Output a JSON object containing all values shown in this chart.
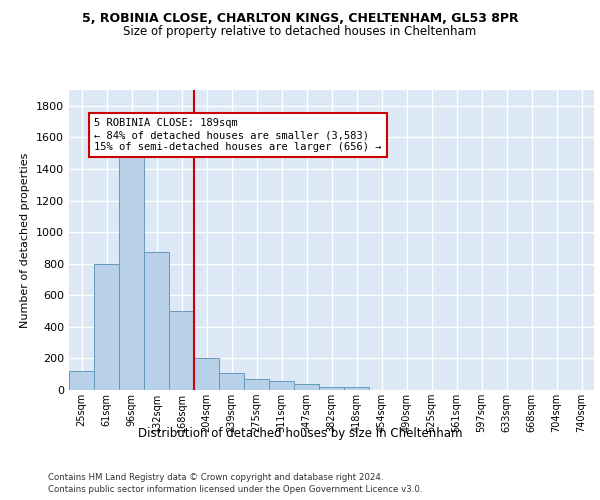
{
  "title_line1": "5, ROBINIA CLOSE, CHARLTON KINGS, CHELTENHAM, GL53 8PR",
  "title_line2": "Size of property relative to detached houses in Cheltenham",
  "xlabel": "Distribution of detached houses by size in Cheltenham",
  "ylabel": "Number of detached properties",
  "categories": [
    "25sqm",
    "61sqm",
    "96sqm",
    "132sqm",
    "168sqm",
    "204sqm",
    "239sqm",
    "275sqm",
    "311sqm",
    "347sqm",
    "382sqm",
    "418sqm",
    "454sqm",
    "490sqm",
    "525sqm",
    "561sqm",
    "597sqm",
    "633sqm",
    "668sqm",
    "704sqm",
    "740sqm"
  ],
  "values": [
    120,
    800,
    1480,
    875,
    500,
    205,
    110,
    70,
    55,
    35,
    20,
    20,
    0,
    0,
    0,
    0,
    0,
    0,
    0,
    0,
    0
  ],
  "bar_color": "#b8d0e8",
  "bar_edge_color": "#6699bb",
  "vline_x": 4.5,
  "vline_color": "#cc0000",
  "annotation_text": "5 ROBINIA CLOSE: 189sqm\n← 84% of detached houses are smaller (3,583)\n15% of semi-detached houses are larger (656) →",
  "annotation_box_color": "#cc0000",
  "ylim": [
    0,
    1900
  ],
  "yticks": [
    0,
    200,
    400,
    600,
    800,
    1000,
    1200,
    1400,
    1600,
    1800
  ],
  "footer_line1": "Contains HM Land Registry data © Crown copyright and database right 2024.",
  "footer_line2": "Contains public sector information licensed under the Open Government Licence v3.0.",
  "background_color": "#dce8f5",
  "grid_color": "#ffffff",
  "fig_bg_color": "#ffffff"
}
